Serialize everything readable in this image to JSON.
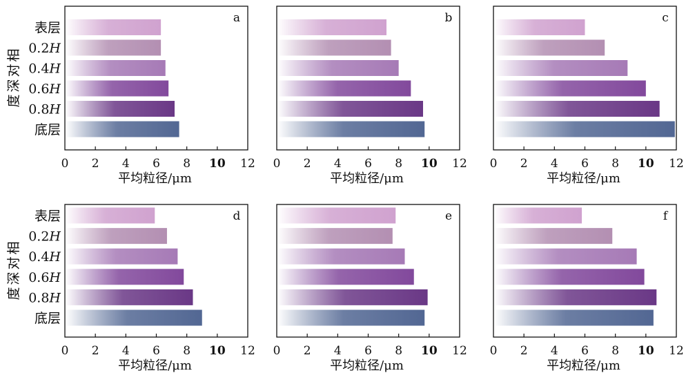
{
  "y_axis_label": "相对深度",
  "x_axis_label": "平均粒径/μm",
  "categories": [
    "表层",
    "0.2H",
    "0.4H",
    "0.6H",
    "0.8H",
    "底层"
  ],
  "x_ticks": [
    "0",
    "2",
    "4",
    "6",
    "8",
    "10",
    "12"
  ],
  "colors": {
    "表层": "#d0a2cf",
    "0.2H": "#b38fb2",
    "0.4H": "#a67ab6",
    "0.6H": "#82499c",
    "0.8H": "#6a3886",
    "底层": "#526793"
  },
  "chart_data": [
    {
      "type": "bar",
      "orientation": "horizontal",
      "panel": "a",
      "categories": [
        "表层",
        "0.2H",
        "0.4H",
        "0.6H",
        "0.8H",
        "底层"
      ],
      "values": [
        6.3,
        6.3,
        6.6,
        6.8,
        7.2,
        7.5
      ],
      "xlim": [
        0,
        12
      ],
      "xlabel": "平均粒径/μm",
      "ylabel": "相对深度"
    },
    {
      "type": "bar",
      "orientation": "horizontal",
      "panel": "b",
      "categories": [
        "表层",
        "0.2H",
        "0.4H",
        "0.6H",
        "0.8H",
        "底层"
      ],
      "values": [
        7.2,
        7.5,
        8.0,
        8.8,
        9.6,
        9.7
      ],
      "xlim": [
        0,
        12
      ],
      "xlabel": "平均粒径/μm",
      "ylabel": ""
    },
    {
      "type": "bar",
      "orientation": "horizontal",
      "panel": "c",
      "categories": [
        "表层",
        "0.2H",
        "0.4H",
        "0.6H",
        "0.8H",
        "底层"
      ],
      "values": [
        6.0,
        7.3,
        8.8,
        10.0,
        10.9,
        11.9
      ],
      "xlim": [
        0,
        12
      ],
      "xlabel": "平均粒径/μm",
      "ylabel": ""
    },
    {
      "type": "bar",
      "orientation": "horizontal",
      "panel": "d",
      "categories": [
        "表层",
        "0.2H",
        "0.4H",
        "0.6H",
        "0.8H",
        "底层"
      ],
      "values": [
        5.9,
        6.7,
        7.4,
        7.8,
        8.4,
        9.0
      ],
      "xlim": [
        0,
        12
      ],
      "xlabel": "平均粒径/μm",
      "ylabel": "相对深度"
    },
    {
      "type": "bar",
      "orientation": "horizontal",
      "panel": "e",
      "categories": [
        "表层",
        "0.2H",
        "0.4H",
        "0.6H",
        "0.8H",
        "底层"
      ],
      "values": [
        7.8,
        7.6,
        8.4,
        9.0,
        9.9,
        9.7
      ],
      "xlim": [
        0,
        12
      ],
      "xlabel": "平均粒径/μm",
      "ylabel": ""
    },
    {
      "type": "bar",
      "orientation": "horizontal",
      "panel": "f",
      "categories": [
        "表层",
        "0.2H",
        "0.4H",
        "0.6H",
        "0.8H",
        "底层"
      ],
      "values": [
        5.8,
        7.8,
        9.4,
        9.9,
        10.7,
        10.5
      ],
      "xlim": [
        0,
        12
      ],
      "xlabel": "平均粒径/μm",
      "ylabel": ""
    }
  ]
}
